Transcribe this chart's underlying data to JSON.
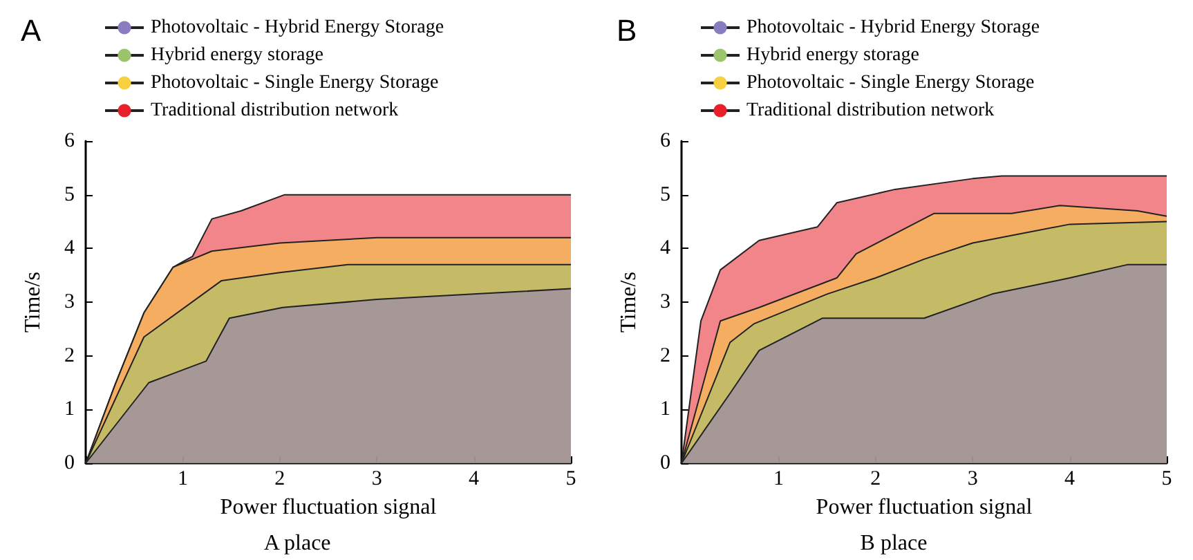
{
  "chart_data": [
    {
      "type": "area",
      "title": "A",
      "xlabel": "Power fluctuation signal",
      "ylabel": "Time/s",
      "annotations": [
        "A place"
      ],
      "xlim": [
        0,
        5
      ],
      "ylim": [
        0,
        6
      ],
      "xticks": [
        {
          "value": 0,
          "label": null
        },
        1,
        2,
        3,
        4,
        5
      ],
      "yticks": [
        0,
        1,
        2,
        3,
        4,
        5,
        6
      ],
      "grid": false,
      "legend": "top",
      "marker": "none",
      "series": [
        {
          "name": "Photovoltaic - Hybrid Energy Storage",
          "color": "#8a7cc0",
          "x": [
            0,
            0.65,
            1.24,
            1.48,
            2.03,
            3,
            4,
            5
          ],
          "values": [
            0,
            1.5,
            1.9,
            2.7,
            2.9,
            3.05,
            3.15,
            3.25
          ]
        },
        {
          "name": "Hybrid energy storage",
          "color": "#9cc46c",
          "x": [
            0,
            0.6,
            1.4,
            2,
            2.7,
            5
          ],
          "values": [
            0,
            2.35,
            3.4,
            3.55,
            3.7,
            3.7
          ]
        },
        {
          "name": "Photovoltaic - Single Energy Storage",
          "color": "#f7cf40",
          "x": [
            0,
            0.3,
            0.6,
            0.9,
            1.3,
            2,
            3,
            4,
            5
          ],
          "values": [
            0,
            1.45,
            2.8,
            3.65,
            3.95,
            4.1,
            4.2,
            4.2,
            4.2
          ]
        },
        {
          "name": "Traditional distribution network",
          "color": "#e8202a",
          "x": [
            0,
            0.3,
            0.6,
            0.9,
            1.1,
            1.3,
            1.6,
            2.05,
            5
          ],
          "values": [
            0,
            1.45,
            2.8,
            3.65,
            3.85,
            4.55,
            4.7,
            5,
            5
          ]
        }
      ]
    },
    {
      "type": "area",
      "title": "B",
      "xlabel": "Power fluctuation signal",
      "ylabel": "Time/s",
      "annotations": [
        "B place"
      ],
      "xlim": [
        0,
        5
      ],
      "ylim": [
        0,
        6
      ],
      "xticks": [
        {
          "value": 0,
          "label": null
        },
        1,
        2,
        3,
        4,
        5
      ],
      "yticks": [
        0,
        1,
        2,
        3,
        4,
        5,
        6
      ],
      "grid": false,
      "legend": "top",
      "marker": "none",
      "series": [
        {
          "name": "Photovoltaic - Hybrid Energy Storage",
          "color": "#8a7cc0",
          "x": [
            0,
            0.5,
            0.8,
            1.45,
            2.5,
            3.2,
            4,
            4.6,
            5
          ],
          "values": [
            0,
            1.3,
            2.1,
            2.7,
            2.7,
            3.15,
            3.45,
            3.7,
            3.7
          ]
        },
        {
          "name": "Hybrid energy storage",
          "color": "#9cc46c",
          "x": [
            0,
            0.5,
            0.75,
            1.5,
            2,
            2.5,
            3,
            4,
            5
          ],
          "values": [
            0,
            2.25,
            2.6,
            3.15,
            3.45,
            3.8,
            4.1,
            4.45,
            4.5
          ]
        },
        {
          "name": "Photovoltaic - Single Energy Storage",
          "color": "#f7cf40",
          "x": [
            0,
            0.4,
            0.8,
            1.6,
            1.8,
            2.6,
            3.4,
            3.9,
            4.7,
            5
          ],
          "values": [
            0,
            2.65,
            2.9,
            3.45,
            3.9,
            4.65,
            4.65,
            4.8,
            4.7,
            4.6
          ]
        },
        {
          "name": "Traditional distribution network",
          "color": "#e8202a",
          "x": [
            0,
            0.2,
            0.4,
            0.8,
            1.4,
            1.6,
            2.2,
            3,
            3.3,
            5
          ],
          "values": [
            0,
            2.65,
            3.6,
            4.15,
            4.4,
            4.85,
            5.1,
            5.3,
            5.35,
            5.35
          ]
        }
      ]
    }
  ]
}
